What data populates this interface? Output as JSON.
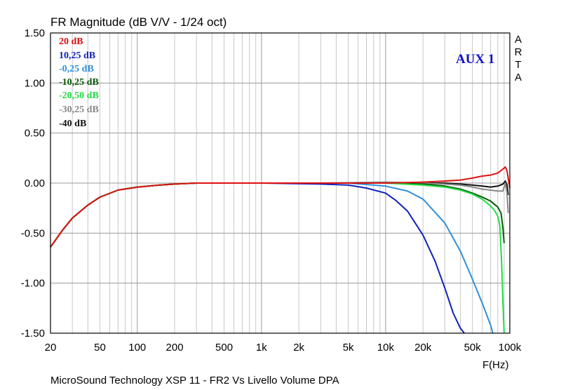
{
  "chart_data": {
    "type": "line",
    "title": "FR Magnitude (dB V/V - 1/24 oct)",
    "xlabel": "F(Hz)",
    "ylabel": "",
    "x_scale": "log",
    "xlim": [
      20,
      100000
    ],
    "ylim": [
      -1.5,
      1.5
    ],
    "grid": true,
    "x_ticks": [
      20,
      50,
      100,
      200,
      500,
      1000,
      2000,
      5000,
      10000,
      20000,
      50000,
      100000
    ],
    "x_tick_labels": [
      "20",
      "50",
      "100",
      "200",
      "500",
      "1k",
      "2k",
      "5k",
      "10k",
      "20k",
      "50k",
      "100k"
    ],
    "y_ticks": [
      1.5,
      1.0,
      0.5,
      0.0,
      -0.5,
      -1.0,
      -1.5
    ],
    "y_tick_labels": [
      "1.50",
      "1.00",
      "0.50",
      "0.00",
      "-0.50",
      "-1.00",
      "-1.50"
    ],
    "legend_position": "top-left",
    "series": [
      {
        "name": "20 dB",
        "color": "#dd1111",
        "x": [
          20,
          25,
          30,
          40,
          50,
          70,
          100,
          150,
          200,
          300,
          500,
          1000,
          3000,
          10000,
          20000,
          30000,
          40000,
          50000,
          60000,
          70000,
          80000,
          88000,
          92000,
          95000,
          100000
        ],
        "y": [
          -0.64,
          -0.47,
          -0.35,
          -0.22,
          -0.14,
          -0.07,
          -0.04,
          -0.02,
          -0.01,
          0.0,
          0.0,
          0.0,
          0.0,
          0.0,
          0.01,
          0.02,
          0.03,
          0.05,
          0.07,
          0.08,
          0.1,
          0.14,
          0.16,
          0.12,
          -0.05
        ]
      },
      {
        "name": "10,25 dB",
        "color": "#1122bb",
        "x": [
          20,
          25,
          30,
          40,
          50,
          70,
          100,
          150,
          200,
          300,
          500,
          1000,
          3000,
          5000,
          7000,
          10000,
          12000,
          15000,
          20000,
          25000,
          30000,
          35000,
          40000,
          43000
        ],
        "y": [
          -0.64,
          -0.47,
          -0.35,
          -0.22,
          -0.14,
          -0.07,
          -0.04,
          -0.02,
          -0.01,
          0.0,
          0.0,
          0.0,
          -0.01,
          -0.02,
          -0.05,
          -0.1,
          -0.17,
          -0.28,
          -0.52,
          -0.78,
          -1.05,
          -1.3,
          -1.45,
          -1.5
        ]
      },
      {
        "name": "-0,25 dB",
        "color": "#2f8fdd",
        "x": [
          20,
          25,
          30,
          40,
          50,
          70,
          100,
          150,
          200,
          300,
          500,
          1000,
          3000,
          5000,
          10000,
          15000,
          20000,
          30000,
          40000,
          50000,
          60000,
          70000,
          73000
        ],
        "y": [
          -0.64,
          -0.47,
          -0.35,
          -0.22,
          -0.14,
          -0.07,
          -0.04,
          -0.02,
          -0.01,
          0.0,
          0.0,
          0.0,
          0.0,
          0.0,
          -0.03,
          -0.08,
          -0.16,
          -0.4,
          -0.68,
          -0.96,
          -1.2,
          -1.42,
          -1.5
        ]
      },
      {
        "name": "-10,25 dB",
        "color": "#0a5a0a",
        "x": [
          20,
          25,
          30,
          40,
          50,
          70,
          100,
          150,
          200,
          300,
          500,
          1000,
          3000,
          10000,
          20000,
          30000,
          40000,
          50000,
          60000,
          70000,
          80000,
          85000,
          88000,
          90000
        ],
        "y": [
          -0.64,
          -0.47,
          -0.35,
          -0.22,
          -0.14,
          -0.07,
          -0.04,
          -0.02,
          -0.01,
          0.0,
          0.0,
          0.0,
          0.0,
          0.0,
          -0.01,
          -0.03,
          -0.06,
          -0.1,
          -0.14,
          -0.18,
          -0.24,
          -0.3,
          -0.45,
          -0.6
        ]
      },
      {
        "name": "-20,50 dB",
        "color": "#22dd44",
        "x": [
          20,
          25,
          30,
          40,
          50,
          70,
          100,
          150,
          200,
          300,
          500,
          1000,
          3000,
          10000,
          20000,
          30000,
          40000,
          50000,
          60000,
          70000,
          75000,
          80000,
          83000,
          86000,
          88000,
          90000
        ],
        "y": [
          -0.64,
          -0.47,
          -0.35,
          -0.22,
          -0.14,
          -0.07,
          -0.04,
          -0.02,
          -0.01,
          0.0,
          0.0,
          0.0,
          0.0,
          0.0,
          -0.02,
          -0.04,
          -0.07,
          -0.11,
          -0.16,
          -0.23,
          -0.27,
          -0.33,
          -0.42,
          -0.8,
          -1.2,
          -1.5
        ]
      },
      {
        "name": "-30,25 dB",
        "color": "#888888",
        "x": [
          20,
          25,
          30,
          40,
          50,
          70,
          100,
          150,
          200,
          300,
          500,
          1000,
          3000,
          10000,
          20000,
          30000,
          40000,
          50000,
          60000,
          70000,
          80000,
          88000,
          92000,
          95000,
          97000
        ],
        "y": [
          -0.64,
          -0.47,
          -0.35,
          -0.22,
          -0.14,
          -0.07,
          -0.04,
          -0.02,
          -0.01,
          0.0,
          0.0,
          0.0,
          0.0,
          0.01,
          0.0,
          -0.01,
          -0.02,
          -0.04,
          -0.06,
          -0.07,
          -0.08,
          -0.08,
          0.0,
          -0.1,
          -0.3
        ]
      },
      {
        "name": "-40 dB",
        "color": "#111111",
        "x": [
          20,
          25,
          30,
          40,
          50,
          70,
          100,
          150,
          200,
          300,
          500,
          1000,
          3000,
          10000,
          20000,
          30000,
          40000,
          50000,
          60000,
          70000,
          80000,
          88000,
          92000,
          95000,
          97000
        ],
        "y": [
          -0.64,
          -0.47,
          -0.35,
          -0.22,
          -0.14,
          -0.07,
          -0.04,
          -0.02,
          -0.01,
          0.0,
          0.0,
          0.0,
          0.0,
          0.0,
          0.0,
          0.0,
          -0.01,
          -0.02,
          -0.03,
          -0.04,
          -0.03,
          -0.01,
          0.02,
          -0.02,
          -0.12
        ]
      }
    ]
  },
  "annotations": {
    "panel_label": "AUX 1",
    "panel_label_color": "#1111cc",
    "watermark_letters": [
      "A",
      "R",
      "T",
      "A"
    ],
    "footer": "MicroSound Technology XSP 11 - FR2 Vs Livello Volume      DPA"
  }
}
